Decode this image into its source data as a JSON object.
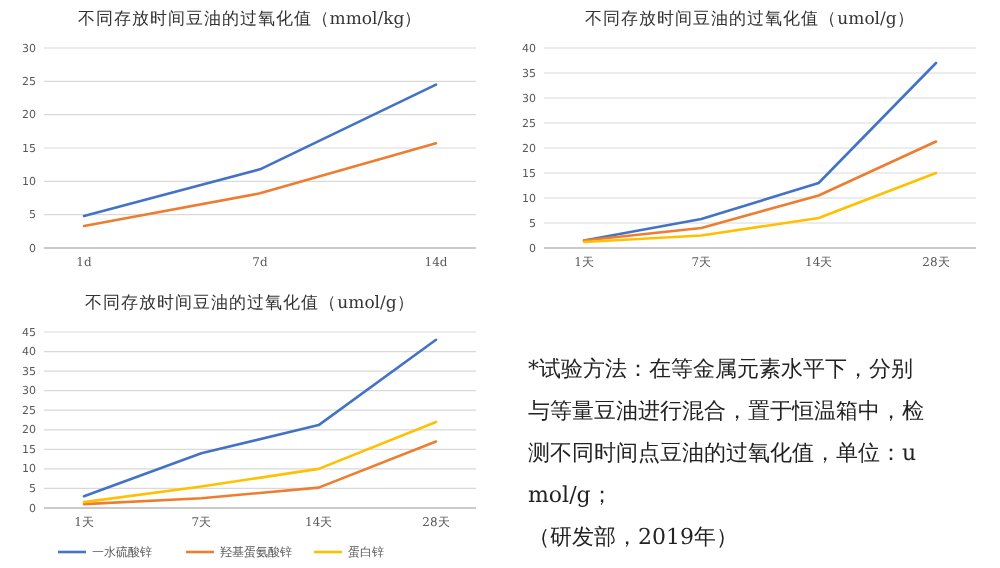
{
  "chart_data": [
    {
      "type": "line",
      "title": "不同存放时间豆油的过氧化值（mmol/kg）",
      "categories": [
        "1d",
        "7d",
        "14d"
      ],
      "ylim": [
        0,
        30
      ],
      "yticks": [
        0,
        5,
        10,
        15,
        20,
        25,
        30
      ],
      "grid": "y",
      "legend": false,
      "series": [
        {
          "color": "#4472c4",
          "values": [
            4.8,
            11.8,
            24.5
          ]
        },
        {
          "color": "#ed7d31",
          "values": [
            3.3,
            8.2,
            15.7
          ]
        }
      ]
    },
    {
      "type": "line",
      "title": "不同存放时间豆油的过氧化值（umol/g）",
      "categories": [
        "1天",
        "7天",
        "14天",
        "28天"
      ],
      "ylim": [
        0,
        40
      ],
      "yticks": [
        0,
        5,
        10,
        15,
        20,
        25,
        30,
        35,
        40
      ],
      "grid": "y",
      "legend": false,
      "series": [
        {
          "color": "#4472c4",
          "values": [
            1.5,
            5.8,
            13,
            37
          ]
        },
        {
          "color": "#ed7d31",
          "values": [
            1.5,
            4,
            10.5,
            21.3
          ]
        },
        {
          "color": "#ffc000",
          "values": [
            1.2,
            2.5,
            6,
            15
          ]
        }
      ]
    },
    {
      "type": "line",
      "title": "不同存放时间豆油的过氧化值（umol/g）",
      "categories": [
        "1天",
        "7天",
        "14天",
        "28天"
      ],
      "ylim": [
        0,
        45
      ],
      "yticks": [
        0,
        5,
        10,
        15,
        20,
        25,
        30,
        35,
        40,
        45
      ],
      "grid": "y",
      "legend": "bottom",
      "series": [
        {
          "name": "一水硫酸锌",
          "color": "#4472c4",
          "values": [
            3,
            14,
            21.2,
            43
          ]
        },
        {
          "name": "羟基蛋氨酸锌",
          "color": "#ed7d31",
          "values": [
            1,
            2.5,
            5.2,
            17
          ]
        },
        {
          "name": "蛋白锌",
          "color": "#ffc000",
          "values": [
            1.5,
            5.5,
            10,
            22
          ]
        }
      ]
    },
    {
      "type": "other",
      "annotations": [
        "*试验方法：在等金属元素水平下，分别与等量豆油进行混合，置于恒温箱中，检测不同时间点豆油的过氧化值，单位：umol/g；",
        "（研发部，2019年）"
      ]
    }
  ]
}
